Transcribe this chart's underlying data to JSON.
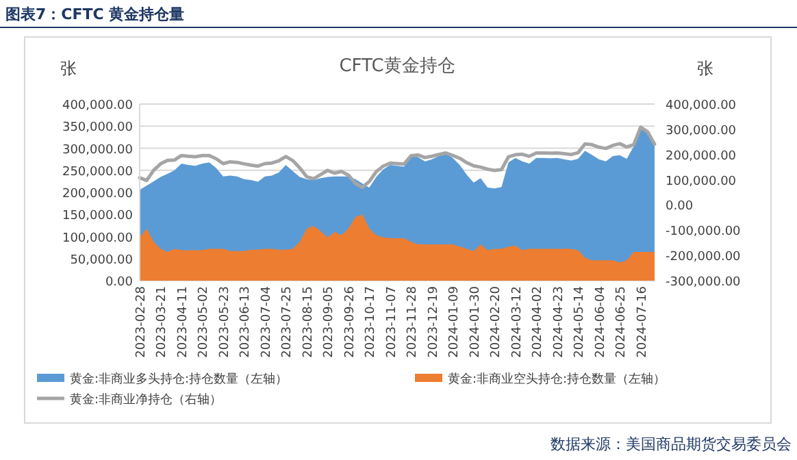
{
  "chart_data": {
    "type": "area",
    "title": "CFTC黄金持仓",
    "subtitle": "图表7：CFTC 黄金持仓量",
    "ylabel": "张",
    "y2label": "张",
    "annotations": [
      "数据来源：美国商品期货交易委员会"
    ],
    "categories": [
      "2023-02-28",
      null,
      null,
      "2023-03-21",
      null,
      null,
      "2023-04-11",
      null,
      null,
      "2023-05-02",
      null,
      null,
      "2023-05-23",
      null,
      null,
      "2023-06-13",
      null,
      null,
      "2023-07-04",
      null,
      null,
      "2023-07-25",
      null,
      null,
      "2023-08-15",
      null,
      null,
      "2023-09-05",
      null,
      null,
      "2023-09-26",
      null,
      null,
      "2023-10-17",
      null,
      null,
      "2023-11-07",
      null,
      null,
      "2023-11-28",
      null,
      null,
      "2023-12-19",
      null,
      null,
      "2024-01-09",
      null,
      null,
      "2024-01-30",
      null,
      null,
      "2024-02-20",
      null,
      null,
      "2024-03-12",
      null,
      null,
      "2024-04-02",
      null,
      null,
      "2024-04-23",
      null,
      null,
      "2024-05-14",
      null,
      null,
      "2024-06-04",
      null,
      null,
      "2024-06-25",
      null,
      null,
      "2024-07-16",
      null,
      null
    ],
    "series": [
      {
        "name": "黄金:非商业多头持仓:持仓数量（左轴）",
        "type": "area",
        "color": "#5b9bd5",
        "values": [
          206000,
          215000,
          225000,
          235000,
          242000,
          250000,
          265000,
          262000,
          260000,
          265000,
          268000,
          255000,
          236000,
          238000,
          236000,
          230000,
          228000,
          224000,
          236000,
          238000,
          245000,
          262000,
          248000,
          235000,
          230000,
          228000,
          232000,
          235000,
          236000,
          236000,
          236000,
          230000,
          220000,
          211000,
          235000,
          252000,
          262000,
          260000,
          258000,
          283000,
          280000,
          270000,
          275000,
          282000,
          288000,
          278000,
          262000,
          240000,
          222000,
          232000,
          211000,
          209000,
          212000,
          268000,
          278000,
          270000,
          265000,
          278000,
          278000,
          277000,
          278000,
          275000,
          272000,
          276000,
          294000,
          285000,
          275000,
          270000,
          282000,
          284000,
          276000,
          304000,
          350000,
          340000,
          306000
        ]
      },
      {
        "name": "黄金:非商业空头持仓:持仓数量（左轴）",
        "type": "area",
        "color": "#ed7d31",
        "values": [
          98000,
          118000,
          88000,
          72000,
          65000,
          72000,
          69000,
          69000,
          69000,
          69000,
          72000,
          72000,
          72000,
          67000,
          67000,
          67000,
          70000,
          70000,
          72000,
          72000,
          70000,
          70000,
          72000,
          88000,
          118000,
          124000,
          112000,
          98000,
          110000,
          103000,
          118000,
          144000,
          150000,
          118000,
          103000,
          98000,
          96000,
          96000,
          96000,
          88000,
          82000,
          82000,
          82000,
          82000,
          82000,
          82000,
          77000,
          72000,
          67000,
          82000,
          69000,
          72000,
          72000,
          77000,
          79000,
          69000,
          72000,
          72000,
          72000,
          72000,
          72000,
          72000,
          72000,
          69000,
          52000,
          46000,
          46000,
          46000,
          46000,
          41000,
          46000,
          65000,
          65000,
          65000,
          65000
        ]
      },
      {
        "name": "黄金:非商业净持仓（右轴）",
        "type": "line",
        "axis": "y2",
        "color": "#a5a5a5",
        "values": [
          108000,
          97000,
          137000,
          163000,
          177000,
          178000,
          196000,
          193000,
          191000,
          196000,
          196000,
          183000,
          164000,
          171000,
          169000,
          163000,
          158000,
          154000,
          164000,
          166000,
          175000,
          192000,
          176000,
          147000,
          112000,
          104000,
          120000,
          137000,
          126000,
          133000,
          118000,
          86000,
          70000,
          93000,
          132000,
          154000,
          166000,
          164000,
          162000,
          195000,
          198000,
          188000,
          193000,
          200000,
          206000,
          196000,
          185000,
          168000,
          155000,
          150000,
          142000,
          137000,
          140000,
          191000,
          199000,
          201000,
          193000,
          206000,
          206000,
          205000,
          206000,
          203000,
          200000,
          207000,
          242000,
          239000,
          229000,
          224000,
          236000,
          243000,
          230000,
          239000,
          308000,
          290000,
          241000
        ]
      }
    ],
    "ylim": [
      0,
      400000
    ],
    "yticks": [
      {
        "value": 0,
        "label": "0.00"
      },
      {
        "value": 50000,
        "label": "50,000.00"
      },
      {
        "value": 100000,
        "label": "100,000.00"
      },
      {
        "value": 150000,
        "label": "150,000.00"
      },
      {
        "value": 200000,
        "label": "200,000.00"
      },
      {
        "value": 250000,
        "label": "250,000.00"
      },
      {
        "value": 300000,
        "label": "300,000.00"
      },
      {
        "value": 350000,
        "label": "350,000.00"
      },
      {
        "value": 400000,
        "label": "400,000.00"
      }
    ],
    "y2lim": [
      -300000,
      400000
    ],
    "y2ticks": [
      {
        "value": -300000,
        "label": "-300,000.00"
      },
      {
        "value": -200000,
        "label": "-200,000.00"
      },
      {
        "value": -100000,
        "label": "-100,000.00"
      },
      {
        "value": 0,
        "label": "0.00"
      },
      {
        "value": 100000,
        "label": "100,000.00"
      },
      {
        "value": 200000,
        "label": "200,000.00"
      },
      {
        "value": 300000,
        "label": "300,000.00"
      },
      {
        "value": 400000,
        "label": "400,000.00"
      }
    ],
    "grid": "y",
    "legend": "bottom"
  }
}
